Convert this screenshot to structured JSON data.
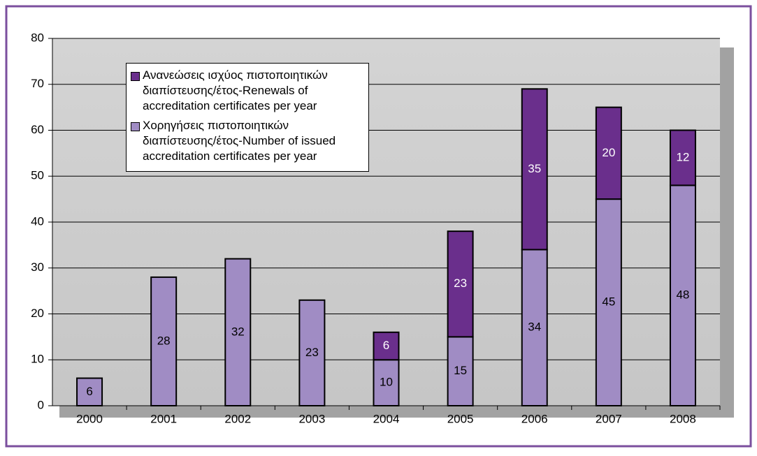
{
  "chart_data": {
    "type": "stacked_bar",
    "categories": [
      "2000",
      "2001",
      "2002",
      "2003",
      "2004",
      "2005",
      "2006",
      "2007",
      "2008"
    ],
    "series": [
      {
        "name": "Χορηγήσεις πιστοποιητικών διαπίστευσης/έτος-Number of issued accreditation certificates per year",
        "color": "#a08cc4",
        "values": [
          6,
          28,
          32,
          23,
          10,
          15,
          34,
          45,
          48
        ]
      },
      {
        "name": "Ανανεώσεις ισχύος πιστοποιητικών διαπίστευσης/έτος-Renewals of accreditation certificates per year",
        "color": "#6a2f8c",
        "values": [
          null,
          null,
          null,
          null,
          6,
          23,
          35,
          20,
          12
        ]
      }
    ],
    "ylim": [
      0,
      80
    ],
    "yticks": [
      0,
      10,
      20,
      30,
      40,
      50,
      60,
      70,
      80
    ],
    "grid": true,
    "legend": "upper left"
  }
}
